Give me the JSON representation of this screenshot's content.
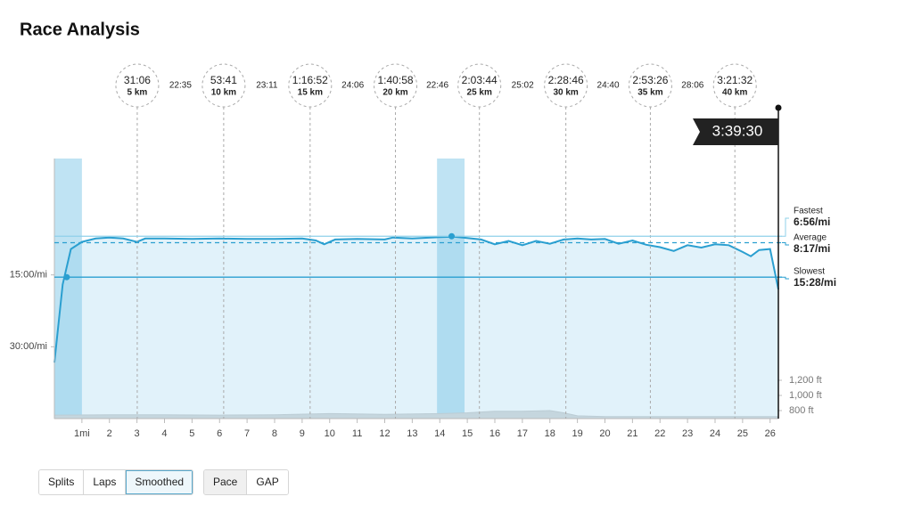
{
  "title": "Race Analysis",
  "chart_data": {
    "type": "line",
    "xlim": [
      0,
      26.3
    ],
    "xticks": [
      {
        "value": 1,
        "label": "1mi"
      },
      2,
      3,
      4,
      5,
      6,
      7,
      8,
      9,
      10,
      11,
      12,
      13,
      14,
      15,
      16,
      17,
      18,
      19,
      20,
      21,
      22,
      23,
      24,
      25,
      26
    ],
    "ylim": [
      45,
      -9.3
    ],
    "yticks": [
      {
        "value": 15,
        "label": "15:00/mi"
      },
      {
        "value": 30,
        "label": "30:00/mi"
      }
    ],
    "y2lim": [
      694,
      4129
    ],
    "y2ticks": [
      {
        "value": 1200,
        "label": "1,200 ft"
      },
      {
        "value": 1000,
        "label": "1,000 ft"
      },
      {
        "value": 800,
        "label": "800 ft"
      }
    ],
    "series": [
      {
        "name": "Pace",
        "color": "#2a9fd0",
        "x": [
          0,
          0.3,
          0.6,
          1,
          1.5,
          2,
          2.5,
          3,
          3.3,
          4,
          5,
          6,
          7,
          8,
          9,
          9.5,
          9.8,
          10.2,
          11,
          12,
          12.3,
          13,
          14,
          14.5,
          15,
          15.5,
          16,
          16.5,
          17,
          17.5,
          18,
          18.5,
          19,
          19.5,
          20,
          20.5,
          21,
          21.5,
          22,
          22.5,
          23,
          23.5,
          24,
          24.5,
          25,
          25.3,
          25.6,
          26,
          26.3
        ],
        "values": [
          33.3,
          17,
          9.6,
          8.1,
          7.4,
          7.2,
          7.4,
          8.1,
          7.4,
          7.4,
          7.5,
          7.4,
          7.5,
          7.5,
          7.4,
          7.8,
          8.6,
          7.6,
          7.5,
          7.6,
          7.2,
          7.4,
          7.1,
          7.0,
          7.3,
          7.6,
          8.6,
          7.9,
          8.8,
          7.9,
          8.5,
          7.6,
          7.4,
          7.6,
          7.5,
          8.5,
          7.8,
          8.7,
          9.2,
          10.0,
          8.8,
          9.3,
          8.6,
          8.8,
          10.2,
          11.1,
          9.8,
          9.6,
          18
        ]
      },
      {
        "name": "Elevation",
        "color": "#dcdcdc",
        "axis": "y2",
        "x": [
          0,
          2,
          4,
          6,
          8,
          10,
          12,
          14,
          15,
          16,
          17,
          18,
          18.5,
          19,
          20,
          22,
          24,
          26.3
        ],
        "values": [
          740,
          745,
          745,
          740,
          745,
          760,
          750,
          760,
          770,
          790,
          790,
          800,
          770,
          730,
          720,
          720,
          720,
          720
        ]
      }
    ],
    "highlights": [
      [
        0,
        1
      ],
      [
        13.9,
        14.9
      ]
    ],
    "references": [
      {
        "name": "Fastest",
        "value": 6.93,
        "label": "6:56/mi",
        "at": 14.43
      },
      {
        "name": "Average",
        "value": 8.28,
        "label": "8:17/mi"
      },
      {
        "name": "Slowest",
        "value": 15.47,
        "label": "15:28/mi",
        "at": 0.45
      }
    ],
    "markers": [
      {
        "time": "31:06",
        "label": "5 km",
        "x": 3.01
      },
      {
        "time": "53:41",
        "label": "10 km",
        "x": 6.15
      },
      {
        "time": "1:16:52",
        "label": "15 km",
        "x": 9.29
      },
      {
        "time": "1:40:58",
        "label": "20 km",
        "x": 12.39
      },
      {
        "time": "2:03:44",
        "label": "25 km",
        "x": 15.44
      },
      {
        "time": "2:28:46",
        "label": "30 km",
        "x": 18.58
      },
      {
        "time": "2:53:26",
        "label": "35 km",
        "x": 21.65
      },
      {
        "time": "3:21:32",
        "label": "40 km",
        "x": 24.72
      }
    ],
    "split_times": [
      "22:35",
      "23:11",
      "24:06",
      "22:46",
      "25:02",
      "24:40",
      "28:06"
    ],
    "finish_time": "3:39:30"
  },
  "controls": {
    "view": [
      {
        "label": "Splits"
      },
      {
        "label": "Laps"
      },
      {
        "label": "Smoothed",
        "active": true
      }
    ],
    "metric": [
      {
        "label": "Pace",
        "active": true
      },
      {
        "label": "GAP"
      }
    ]
  }
}
